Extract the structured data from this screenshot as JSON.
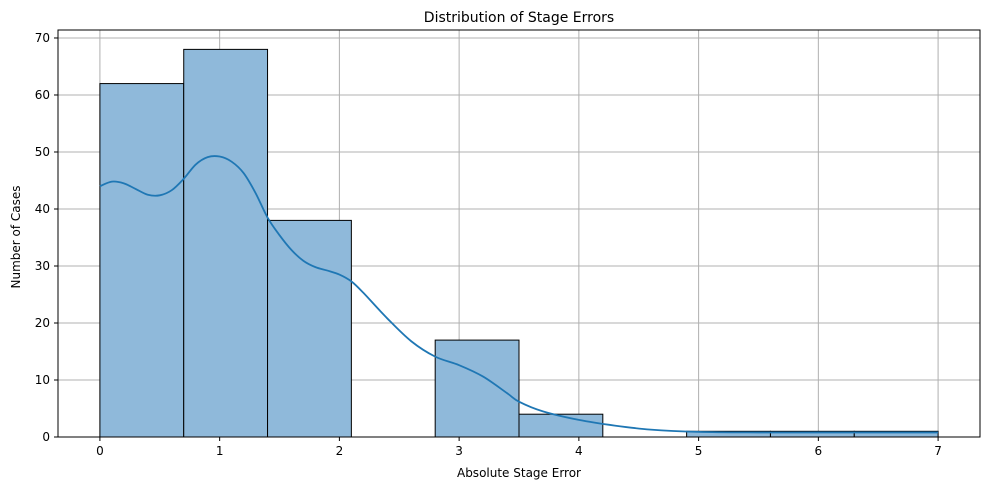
{
  "chart_data": {
    "type": "bar",
    "title": "Distribution of Stage Errors",
    "xlabel": "Absolute Stage Error",
    "ylabel": "Number of Cases",
    "xlim": [
      -0.35,
      7.35
    ],
    "ylim": [
      0,
      71.4
    ],
    "xticks": [
      0,
      1,
      2,
      3,
      4,
      5,
      6,
      7
    ],
    "yticks": [
      0,
      10,
      20,
      30,
      40,
      50,
      60,
      70
    ],
    "grid": true,
    "bins": [
      {
        "start": 0.0,
        "end": 0.7,
        "count": 62
      },
      {
        "start": 0.7,
        "end": 1.4,
        "count": 68
      },
      {
        "start": 1.4,
        "end": 2.1,
        "count": 38
      },
      {
        "start": 2.1,
        "end": 2.8,
        "count": 0
      },
      {
        "start": 2.8,
        "end": 3.5,
        "count": 17
      },
      {
        "start": 3.5,
        "end": 4.2,
        "count": 4
      },
      {
        "start": 4.2,
        "end": 4.9,
        "count": 0
      },
      {
        "start": 4.9,
        "end": 5.6,
        "count": 1
      },
      {
        "start": 5.6,
        "end": 6.3,
        "count": 1
      },
      {
        "start": 6.3,
        "end": 7.0,
        "count": 1
      }
    ],
    "kde": {
      "x": [
        0,
        0.1,
        0.2,
        0.3,
        0.4,
        0.5,
        0.6,
        0.7,
        0.8,
        0.9,
        1.0,
        1.1,
        1.2,
        1.3,
        1.4,
        1.5,
        1.6,
        1.7,
        1.8,
        1.9,
        2.0,
        2.1,
        2.2,
        2.4,
        2.6,
        2.8,
        3.0,
        3.2,
        3.4,
        3.5,
        3.7,
        4.0,
        4.3,
        4.6,
        5.0,
        5.5,
        6.0,
        6.5,
        7.0
      ],
      "y": [
        44,
        44.8,
        44.5,
        43.5,
        42.5,
        42.4,
        43.3,
        45.3,
        47.8,
        49.1,
        49.2,
        48.3,
        46.3,
        42.8,
        38.5,
        35.4,
        32.8,
        30.9,
        29.8,
        29.2,
        28.5,
        27.3,
        25.3,
        20.8,
        16.8,
        14.1,
        12.6,
        10.6,
        7.7,
        6.2,
        4.5,
        3.0,
        2.0,
        1.3,
        0.9,
        0.8,
        0.8,
        0.8,
        0.8
      ]
    },
    "colors": {
      "bar_fill": "#8fb9da",
      "bar_edge": "#000000",
      "kde_line": "#1f77b4",
      "grid": "#b0b0b0"
    }
  }
}
